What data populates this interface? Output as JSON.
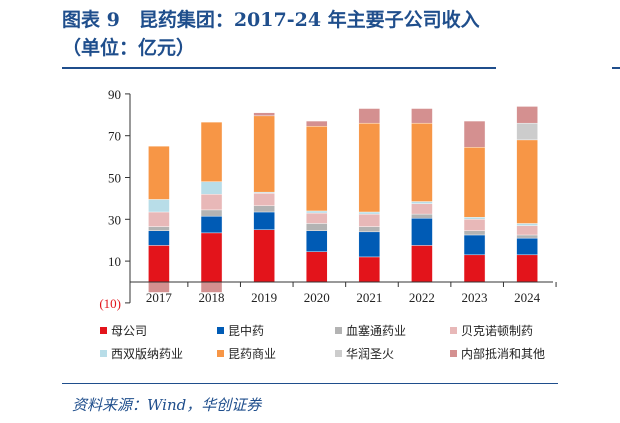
{
  "chart_data": {
    "type": "bar",
    "stacked": true,
    "title": "图表 9　昆药集团：2017-24 年主要子公司收入（单位：亿元）",
    "categories": [
      "2017",
      "2018",
      "2019",
      "2020",
      "2021",
      "2022",
      "2023",
      "2024"
    ],
    "ylim": [
      -10,
      90
    ],
    "yticks": [
      -10,
      10,
      30,
      50,
      70,
      90
    ],
    "ytick_labels": [
      "(10)",
      "10",
      "30",
      "50",
      "70",
      "90"
    ],
    "grid": false,
    "legend_position": "bottom",
    "series": [
      {
        "name": "母公司",
        "color": "#e3141b",
        "values": [
          17.5,
          23.5,
          25,
          14.5,
          12,
          17.5,
          13,
          13
        ]
      },
      {
        "name": "昆中药",
        "color": "#005bb5",
        "values": [
          7,
          8,
          8.5,
          10,
          12,
          13,
          9.5,
          8
        ]
      },
      {
        "name": "血塞通药业",
        "color": "#b3b3b3",
        "values": [
          2,
          3,
          3,
          3.5,
          2.5,
          2,
          2,
          1.5
        ]
      },
      {
        "name": "贝克诺顿制药",
        "color": "#e8b8b8",
        "values": [
          7,
          7.5,
          6,
          5,
          6,
          5,
          5.5,
          4.5
        ]
      },
      {
        "name": "西双版纳药业",
        "color": "#b8dde8",
        "values": [
          6,
          6,
          0.5,
          1,
          1,
          1,
          1,
          1
        ]
      },
      {
        "name": "昆药商业",
        "color": "#f79646",
        "values": [
          25.5,
          28.5,
          36.5,
          40.5,
          42.5,
          37.5,
          33.5,
          40
        ]
      },
      {
        "name": "华润圣火",
        "color": "#cccccc",
        "values": [
          0,
          0,
          0,
          0,
          0,
          0,
          0,
          8
        ]
      },
      {
        "name": "内部抵消和其他",
        "color": "#d49090",
        "values": [
          -5,
          -5,
          1.5,
          2.5,
          7,
          7,
          12.5,
          8
        ]
      }
    ]
  },
  "source": "资料来源：Wind，华创证券"
}
